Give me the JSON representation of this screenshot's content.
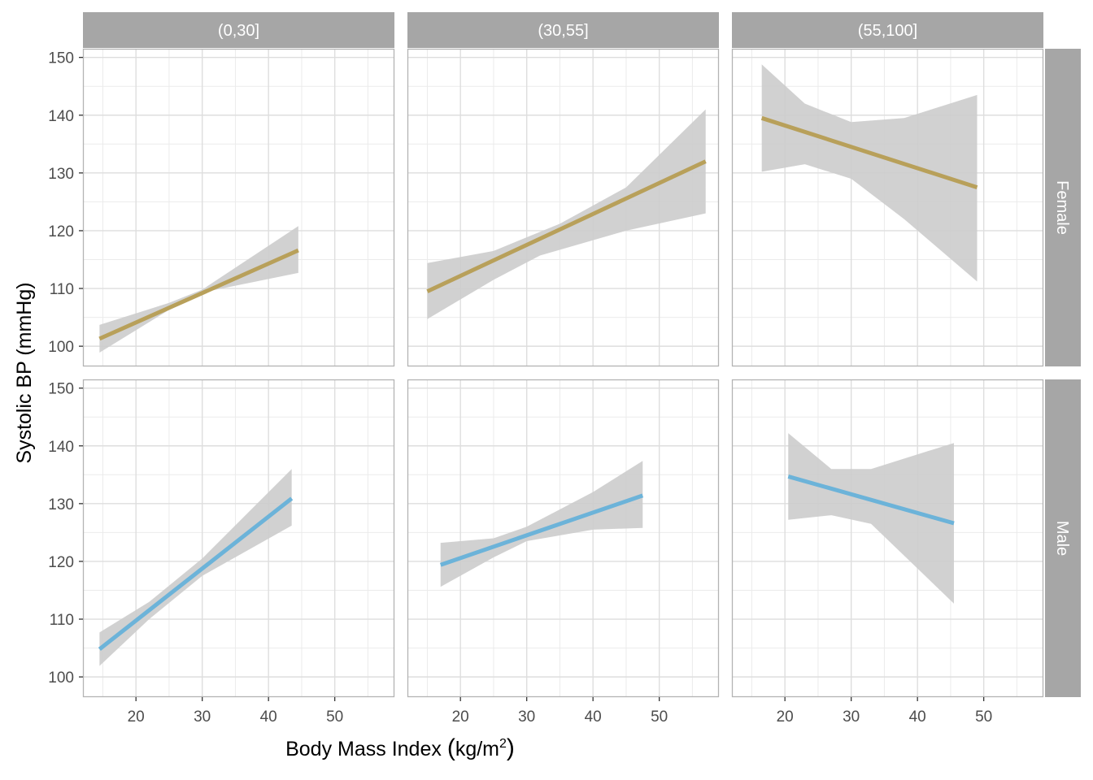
{
  "chart_data": {
    "type": "line",
    "xlabel": "Body Mass Index",
    "xlabel_unit_base": "kg/m",
    "xlabel_unit_sup": "2",
    "ylabel": "Systolic BP (mmHg)",
    "xlim": [
      12,
      59
    ],
    "ylim": [
      96.5,
      151.5
    ],
    "x_ticks": [
      20,
      30,
      40,
      50
    ],
    "y_ticks": [
      100,
      110,
      120,
      130,
      140,
      150
    ],
    "grid": true,
    "column_facets": [
      "(0,30]",
      "(30,55]",
      "(55,100]"
    ],
    "row_facets": [
      "Female",
      "Male"
    ],
    "colors": {
      "Female": "#b8a05a",
      "Male": "#6cb3d9",
      "ribbon": "#cccccc",
      "strip": "#a6a6a6"
    },
    "panels": [
      {
        "col": "(0,30]",
        "row": "Female",
        "fit": [
          [
            14.5,
            101.3
          ],
          [
            44.5,
            116.6
          ]
        ],
        "ci_upper": [
          [
            14.5,
            103.7
          ],
          [
            25,
            107.5
          ],
          [
            30,
            109.8
          ],
          [
            44.5,
            120.8
          ]
        ],
        "ci_lower": [
          [
            14.5,
            98.9
          ],
          [
            25,
            106.3
          ],
          [
            30,
            109.3
          ],
          [
            44.5,
            112.7
          ]
        ]
      },
      {
        "col": "(30,55]",
        "row": "Female",
        "fit": [
          [
            15,
            109.5
          ],
          [
            57,
            132.0
          ]
        ],
        "ci_upper": [
          [
            15,
            114.4
          ],
          [
            25,
            116.5
          ],
          [
            35,
            121.2
          ],
          [
            45,
            127.5
          ],
          [
            57,
            141.0
          ]
        ],
        "ci_lower": [
          [
            15,
            104.7
          ],
          [
            25,
            111.5
          ],
          [
            32,
            115.7
          ],
          [
            45,
            120.0
          ],
          [
            57,
            123.0
          ]
        ]
      },
      {
        "col": "(55,100]",
        "row": "Female",
        "fit": [
          [
            16.5,
            139.5
          ],
          [
            49,
            127.5
          ]
        ],
        "ci_upper": [
          [
            16.5,
            148.8
          ],
          [
            23,
            142.0
          ],
          [
            30,
            138.8
          ],
          [
            38,
            139.5
          ],
          [
            49,
            143.5
          ]
        ],
        "ci_lower": [
          [
            16.5,
            130.2
          ],
          [
            23,
            131.5
          ],
          [
            30,
            129.0
          ],
          [
            38,
            122.0
          ],
          [
            49,
            111.2
          ]
        ]
      },
      {
        "col": "(0,30]",
        "row": "Male",
        "fit": [
          [
            14.5,
            104.8
          ],
          [
            43.5,
            130.9
          ]
        ],
        "ci_upper": [
          [
            14.5,
            107.7
          ],
          [
            22,
            113.0
          ],
          [
            30,
            120.5
          ],
          [
            43.5,
            136.0
          ]
        ],
        "ci_lower": [
          [
            14.5,
            101.9
          ],
          [
            22,
            110.0
          ],
          [
            30,
            117.5
          ],
          [
            43.5,
            126.2
          ]
        ]
      },
      {
        "col": "(30,55]",
        "row": "Male",
        "fit": [
          [
            17,
            119.4
          ],
          [
            47.5,
            131.4
          ]
        ],
        "ci_upper": [
          [
            17,
            123.2
          ],
          [
            25,
            124.0
          ],
          [
            30,
            126.0
          ],
          [
            40,
            132.0
          ],
          [
            47.5,
            137.4
          ]
        ],
        "ci_lower": [
          [
            17,
            115.6
          ],
          [
            25,
            120.7
          ],
          [
            30,
            123.5
          ],
          [
            40,
            125.5
          ],
          [
            47.5,
            125.8
          ]
        ]
      },
      {
        "col": "(55,100]",
        "row": "Male",
        "fit": [
          [
            20.5,
            134.7
          ],
          [
            45.5,
            126.6
          ]
        ],
        "ci_upper": [
          [
            20.5,
            142.2
          ],
          [
            27,
            136.0
          ],
          [
            33,
            136.0
          ],
          [
            45.5,
            140.5
          ]
        ],
        "ci_lower": [
          [
            20.5,
            127.2
          ],
          [
            27,
            128.0
          ],
          [
            33,
            126.5
          ],
          [
            45.5,
            112.7
          ]
        ]
      }
    ]
  }
}
